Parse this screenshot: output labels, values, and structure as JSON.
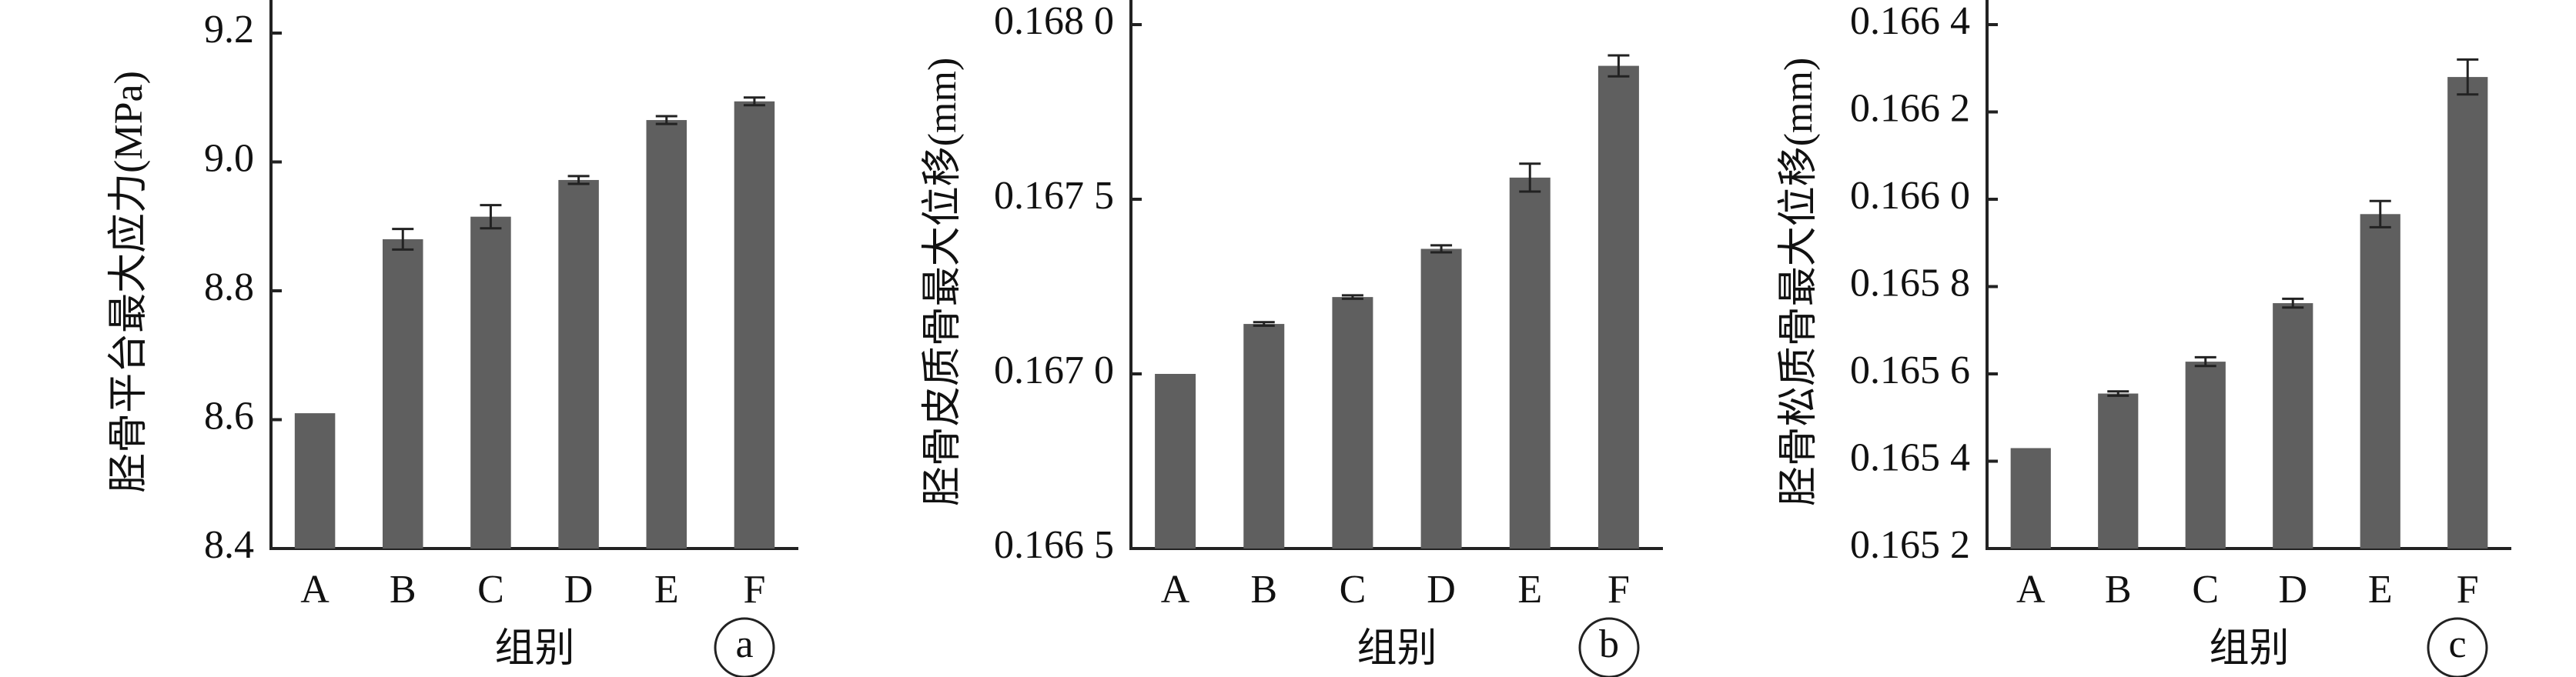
{
  "chart_data": [
    {
      "type": "bar",
      "ylabel": "胫骨平台最大应力(MPa)",
      "xlabel": "组别",
      "panel": "a",
      "categories": [
        "A",
        "B",
        "C",
        "D",
        "E",
        "F"
      ],
      "values": [
        8.61,
        8.88,
        8.915,
        8.972,
        9.065,
        9.094
      ],
      "errors": [
        0,
        0.016,
        0.018,
        0.006,
        0.006,
        0.006
      ],
      "color": "#5f5f5f",
      "ylim": [
        8.4,
        9.2
      ],
      "yticks": [
        8.4,
        8.6,
        8.8,
        {
          "value": 9,
          "label": "9.0"
        },
        9.2
      ]
    },
    {
      "type": "bar",
      "ylabel": "胫骨皮质骨最大位移(mm)",
      "xlabel": "组别",
      "panel": "b",
      "categories": [
        "A",
        "B",
        "C",
        "D",
        "E",
        "F"
      ],
      "values": [
        0.167,
        0.167143,
        0.16722,
        0.167358,
        0.167562,
        0.167882
      ],
      "errors": [
        0,
        5e-06,
        5e-06,
        1e-05,
        4e-05,
        3e-05
      ],
      "color": "#5f5f5f",
      "ylim": [
        0.1665,
        0.168
      ],
      "yticks": [
        {
          "value": 0.1665,
          "label": "0.166 5"
        },
        {
          "value": 0.167,
          "label": "0.167 0"
        },
        {
          "value": 0.1675,
          "label": "0.167 5"
        },
        {
          "value": 0.168,
          "label": "0.168 0"
        }
      ]
    },
    {
      "type": "bar",
      "ylabel": "胫骨松质骨最大位移(mm)",
      "xlabel": "组别",
      "panel": "c",
      "categories": [
        "A",
        "B",
        "C",
        "D",
        "E",
        "F"
      ],
      "values": [
        0.16543,
        0.165555,
        0.165628,
        0.165762,
        0.165966,
        0.16628
      ],
      "errors": [
        0,
        5e-06,
        1e-05,
        1e-05,
        3e-05,
        4e-05
      ],
      "color": "#5f5f5f",
      "ylim": [
        0.1652,
        0.1664
      ],
      "yticks": [
        {
          "value": 0.1652,
          "label": "0.165 2"
        },
        {
          "value": 0.1654,
          "label": "0.165 4"
        },
        {
          "value": 0.1656,
          "label": "0.165 6"
        },
        {
          "value": 0.1658,
          "label": "0.165 8"
        },
        {
          "value": 0.166,
          "label": "0.166 0"
        },
        {
          "value": 0.1662,
          "label": "0.166 2"
        },
        {
          "value": 0.1664,
          "label": "0.166 4"
        }
      ]
    }
  ]
}
